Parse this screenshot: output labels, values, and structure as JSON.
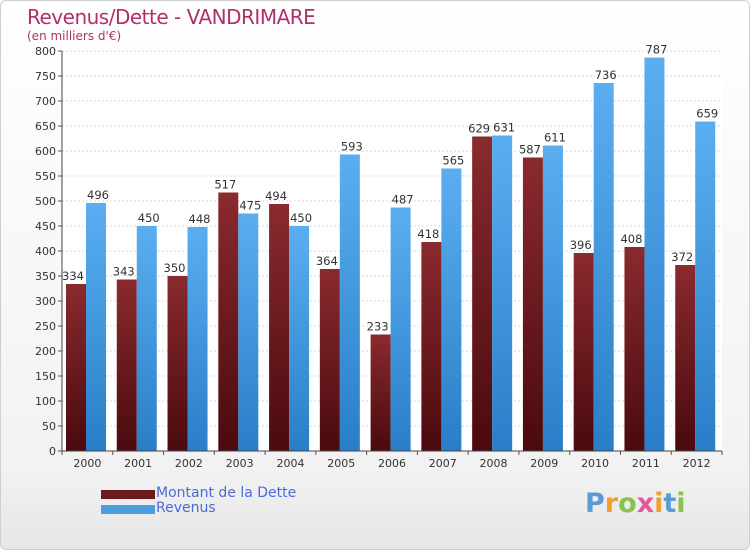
{
  "title": "Revenus/Dette - VANDRIMARE",
  "subtitle": "(en milliers d'€)",
  "logo": {
    "text": "Proxiti",
    "letters": [
      {
        "ch": "P",
        "color": "#5b9bd5"
      },
      {
        "ch": "r",
        "color": "#f0a030"
      },
      {
        "ch": "o",
        "color": "#8bc34a"
      },
      {
        "ch": "x",
        "color": "#e05a9a"
      },
      {
        "ch": "i",
        "color": "#f0a030"
      },
      {
        "ch": "t",
        "color": "#5b9bd5"
      },
      {
        "ch": "i",
        "color": "#8bc34a"
      }
    ]
  },
  "chart_data": {
    "type": "bar",
    "title": "Revenus/Dette - VANDRIMARE",
    "ylabel": "(en milliers d'€)",
    "ylim": [
      0,
      800
    ],
    "yticks": [
      0,
      50,
      100,
      150,
      200,
      250,
      300,
      350,
      400,
      450,
      500,
      550,
      600,
      650,
      700,
      750,
      800
    ],
    "grid": true,
    "legend_position": "bottom-left",
    "categories": [
      "2000",
      "2001",
      "2002",
      "2003",
      "2004",
      "2005",
      "2006",
      "2007",
      "2008",
      "2009",
      "2010",
      "2011",
      "2012"
    ],
    "series": [
      {
        "name": "Montant de la Dette",
        "color": "#6b1a1e",
        "values": [
          334,
          343,
          350,
          517,
          494,
          364,
          233,
          418,
          629,
          587,
          396,
          408,
          372
        ]
      },
      {
        "name": "Revenus",
        "color": "#4a9ee0",
        "values": [
          496,
          450,
          448,
          475,
          450,
          593,
          487,
          565,
          631,
          611,
          736,
          787,
          659
        ]
      }
    ]
  }
}
